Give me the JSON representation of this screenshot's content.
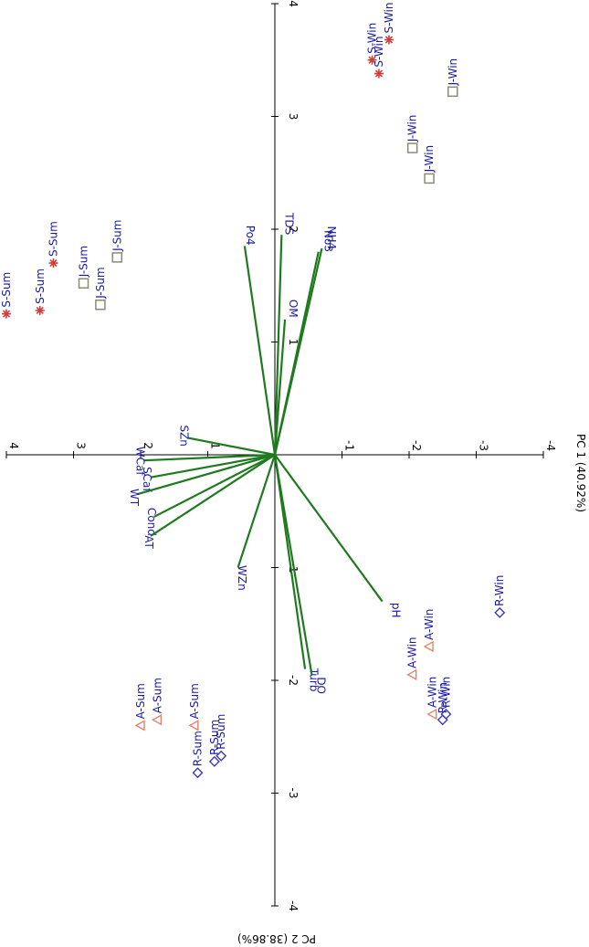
{
  "chart_data": {
    "type": "scatter",
    "subtype": "pca-biplot",
    "rotation": "90deg-clockwise",
    "x_axis": {
      "label": "PC 1 (40.92%)",
      "range": [
        -4,
        4
      ],
      "ticks": [
        4,
        3,
        2,
        1,
        0,
        -1,
        -2,
        -3,
        -4
      ],
      "tick_labels": [
        "4",
        "3",
        "2",
        "1",
        "",
        "-1",
        "-2",
        "-3",
        "-4"
      ]
    },
    "y_axis": {
      "label": "PC 2 (38.86%)",
      "range": [
        -4,
        4
      ],
      "ticks": [
        4,
        3,
        2,
        1,
        0,
        -1,
        -2,
        -3,
        -4
      ],
      "tick_labels": [
        "4",
        "3",
        "2",
        "1",
        "",
        "-1",
        "-2",
        "-3",
        "-4"
      ]
    },
    "grid": false,
    "colors": {
      "vector": "#1f7a1f",
      "label": "#1a1aa6",
      "star": "#d43a3a",
      "square": "#8a8a78",
      "triangle": "#e8826a",
      "diamond": "#3b3bb5"
    },
    "loadings": [
      {
        "label": "TDS",
        "pc1": -0.1,
        "pc2": 1.95
      },
      {
        "label": "Po4",
        "pc1": 0.45,
        "pc2": 1.85
      },
      {
        "label": "NH4",
        "pc1": -0.7,
        "pc2": 1.83
      },
      {
        "label": "No3",
        "pc1": -0.65,
        "pc2": 1.8
      },
      {
        "label": "OM",
        "pc1": -0.15,
        "pc2": 1.2
      },
      {
        "label": "SZn",
        "pc1": 1.3,
        "pc2": 0.15
      },
      {
        "label": "WCaf",
        "pc1": 1.95,
        "pc2": -0.05
      },
      {
        "label": "SCaf",
        "pc1": 1.85,
        "pc2": -0.2
      },
      {
        "label": "WT",
        "pc1": 2.05,
        "pc2": -0.35
      },
      {
        "label": "Cond",
        "pc1": 1.8,
        "pc2": -0.55
      },
      {
        "label": "AT",
        "pc1": 1.85,
        "pc2": -0.72
      },
      {
        "label": "WZn",
        "pc1": 0.55,
        "pc2": -1.0
      },
      {
        "label": "pH",
        "pc1": -1.6,
        "pc2": -1.3
      },
      {
        "label": "Turb",
        "pc1": -0.45,
        "pc2": -1.9
      },
      {
        "label": "DO",
        "pc1": -0.55,
        "pc2": -1.95
      }
    ],
    "series": [
      {
        "marker": "star",
        "points": [
          {
            "label": "S-Sum",
            "pc1": 4.0,
            "pc2": 1.25
          },
          {
            "label": "S-Sum",
            "pc1": 3.5,
            "pc2": 1.28
          },
          {
            "label": "S-Sum",
            "pc1": 3.3,
            "pc2": 1.7
          },
          {
            "label": "S-Win",
            "pc1": -1.45,
            "pc2": 3.5
          },
          {
            "label": "S-Win",
            "pc1": -1.55,
            "pc2": 3.38
          },
          {
            "label": "S-Win",
            "pc1": -1.7,
            "pc2": 3.68
          }
        ]
      },
      {
        "marker": "square",
        "points": [
          {
            "label": "J-Sum",
            "pc1": 2.85,
            "pc2": 1.52
          },
          {
            "label": "J-Sum",
            "pc1": 2.6,
            "pc2": 1.33
          },
          {
            "label": "J-Sum",
            "pc1": 2.35,
            "pc2": 1.75
          },
          {
            "label": "J-Win",
            "pc1": -2.65,
            "pc2": 3.22
          },
          {
            "label": "J-Win",
            "pc1": -2.05,
            "pc2": 2.72
          },
          {
            "label": "J-Win",
            "pc1": -2.3,
            "pc2": 2.45
          }
        ]
      },
      {
        "marker": "triangle",
        "points": [
          {
            "label": "A-Sum",
            "pc1": 2.0,
            "pc2": -2.4
          },
          {
            "label": "A-Sum",
            "pc1": 1.75,
            "pc2": -2.35
          },
          {
            "label": "A-Sum",
            "pc1": 1.2,
            "pc2": -2.4
          },
          {
            "label": "A-Win",
            "pc1": -2.05,
            "pc2": -1.95
          },
          {
            "label": "A-Win",
            "pc1": -2.3,
            "pc2": -1.7
          },
          {
            "label": "A-Win",
            "pc1": -2.35,
            "pc2": -2.3
          }
        ]
      },
      {
        "marker": "diamond",
        "points": [
          {
            "label": "R-Sum",
            "pc1": 1.15,
            "pc2": -2.82
          },
          {
            "label": "R-Sum",
            "pc1": 0.9,
            "pc2": -2.72
          },
          {
            "label": "R-Sum",
            "pc1": 0.8,
            "pc2": -2.67
          },
          {
            "label": "R-Win",
            "pc1": -2.5,
            "pc2": -2.35
          },
          {
            "label": "R-Win",
            "pc1": -2.55,
            "pc2": -2.3
          },
          {
            "label": "R-Win",
            "pc1": -3.35,
            "pc2": -1.4
          }
        ]
      }
    ]
  }
}
